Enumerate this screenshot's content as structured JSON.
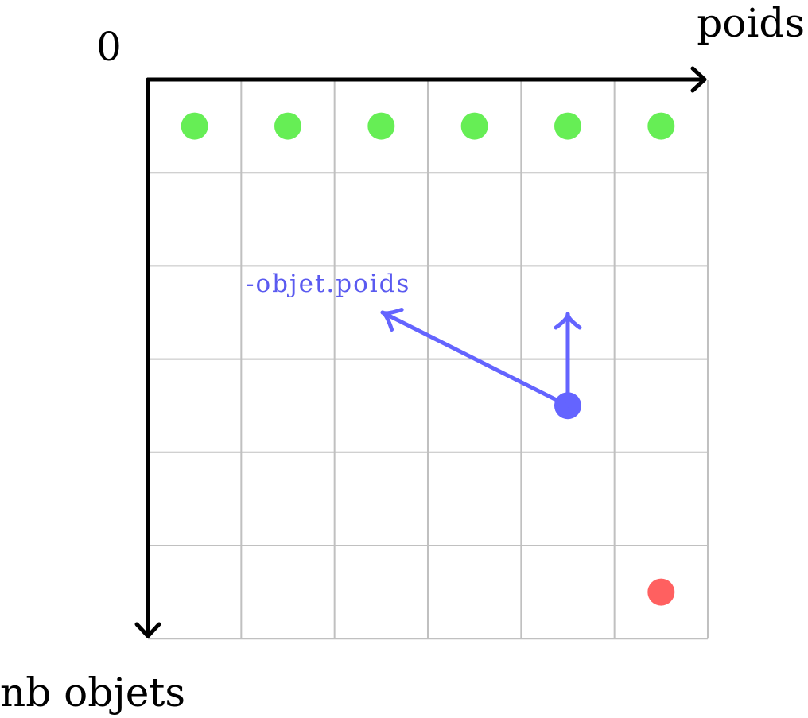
{
  "labels": {
    "origin": "0",
    "x_axis": "poids",
    "y_axis": "nb objets",
    "move_arrow": "-objet.poids"
  },
  "grid": {
    "columns": 6,
    "rows": 6
  },
  "cells": {
    "initial_row": [
      0,
      1,
      2,
      3,
      4,
      5
    ],
    "current": {
      "row": 3,
      "col": 4
    },
    "target": {
      "row": 5,
      "col": 5
    }
  },
  "colors": {
    "grid": "#c0c0c0",
    "axis": "#000000",
    "initial_dot": "#66ee55",
    "current_dot": "#6464ff",
    "target_dot": "#ff6060",
    "arrow": "#6464ff",
    "arrow_label": "#5a5af0"
  }
}
